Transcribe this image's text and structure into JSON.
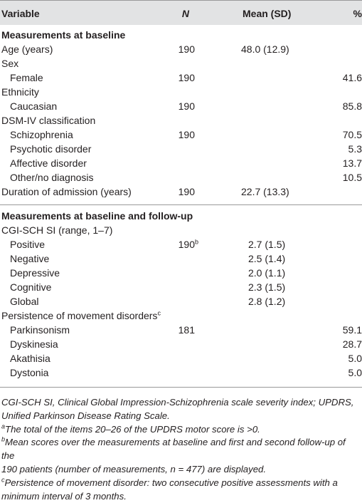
{
  "header": {
    "variable": "Variable",
    "n": "N",
    "mean": "Mean (SD)",
    "pct": "%"
  },
  "section1": {
    "title": "Measurements at baseline",
    "rows": [
      {
        "label": "Age (years)",
        "indent": false,
        "n": "190",
        "mean": "48.0 (12.9)",
        "pct": ""
      },
      {
        "label": "Sex",
        "indent": false,
        "n": "",
        "mean": "",
        "pct": ""
      },
      {
        "label": "Female",
        "indent": true,
        "n": "190",
        "mean": "",
        "pct": "41.6"
      },
      {
        "label": "Ethnicity",
        "indent": false,
        "n": "",
        "mean": "",
        "pct": ""
      },
      {
        "label": "Caucasian",
        "indent": true,
        "n": "190",
        "mean": "",
        "pct": "85.8"
      },
      {
        "label": "DSM-IV classification",
        "indent": false,
        "n": "",
        "mean": "",
        "pct": ""
      },
      {
        "label": "Schizophrenia",
        "indent": true,
        "n": "190",
        "mean": "",
        "pct": "70.5"
      },
      {
        "label": "Psychotic disorder",
        "indent": true,
        "n": "",
        "mean": "",
        "pct": "5.3"
      },
      {
        "label": "Affective disorder",
        "indent": true,
        "n": "",
        "mean": "",
        "pct": "13.7"
      },
      {
        "label": "Other/no diagnosis",
        "indent": true,
        "n": "",
        "mean": "",
        "pct": "10.5"
      },
      {
        "label": "Duration of admission (years)",
        "indent": false,
        "n": "190",
        "mean": "22.7 (13.3)",
        "pct": ""
      }
    ]
  },
  "section2": {
    "title": "Measurements at baseline and follow-up",
    "rows": [
      {
        "label": "CGI-SCH SI (range, 1–7)",
        "indent": false,
        "n": "",
        "mean": "",
        "pct": ""
      },
      {
        "label": "Positive",
        "indent": true,
        "n": "190",
        "nsup": "b",
        "mean": "2.7 (1.5)",
        "pct": ""
      },
      {
        "label": "Negative",
        "indent": true,
        "n": "",
        "mean": "2.5 (1.4)",
        "pct": ""
      },
      {
        "label": "Depressive",
        "indent": true,
        "n": "",
        "mean": "2.0 (1.1)",
        "pct": ""
      },
      {
        "label": "Cognitive",
        "indent": true,
        "n": "",
        "mean": "2.3 (1.5)",
        "pct": ""
      },
      {
        "label": "Global",
        "indent": true,
        "n": "",
        "mean": "2.8 (1.2)",
        "pct": ""
      },
      {
        "label": "Persistence of movement disorders",
        "labelsup": "c",
        "indent": false,
        "n": "",
        "mean": "",
        "pct": ""
      },
      {
        "label": "Parkinsonism",
        "indent": true,
        "n": "181",
        "mean": "",
        "pct": "59.1"
      },
      {
        "label": "Dyskinesia",
        "indent": true,
        "n": "",
        "mean": "",
        "pct": "28.7"
      },
      {
        "label": "Akathisia",
        "indent": true,
        "n": "",
        "mean": "",
        "pct": "5.0"
      },
      {
        "label": "Dystonia",
        "indent": true,
        "n": "",
        "mean": "",
        "pct": "5.0"
      }
    ]
  },
  "footnotes": {
    "abbrev1": "CGI-SCH SI, Clinical Global Impression-Schizophrenia scale severity index; UPDRS,",
    "abbrev2": "Unified Parkinson Disease Rating Scale.",
    "a_mark": "a",
    "a_text": "The total of the items 20–26 of the UPDRS motor score is >0.",
    "b_mark": "b",
    "b_text1": "Mean scores over the measurements at baseline and first and second follow-up of the",
    "b_text2": "190 patients (number of measurements, n = 477) are displayed.",
    "c_mark": "c",
    "c_text1": "Persistence of movement disorder: two consecutive positive assessments with a",
    "c_text2": "minimum interval of 3 months."
  }
}
